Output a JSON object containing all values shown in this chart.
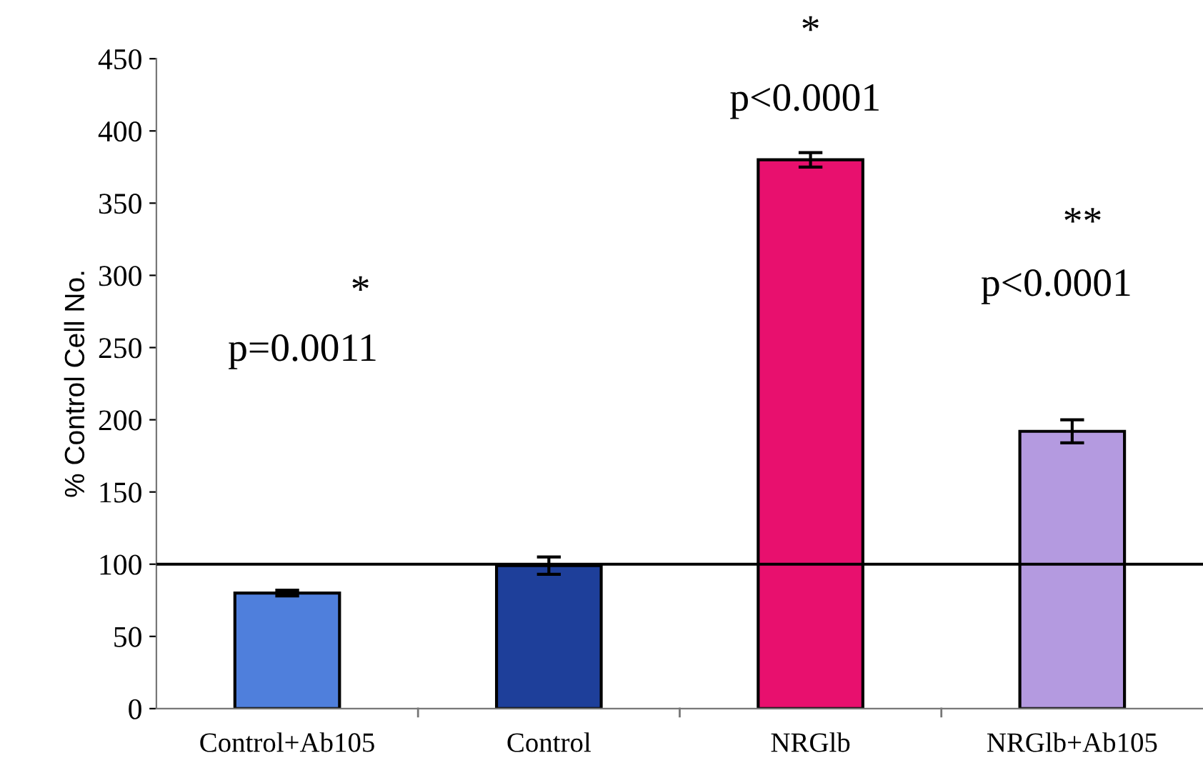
{
  "chart_data": {
    "type": "bar",
    "ylabel": "% Control Cell No.",
    "categories": [
      "Control+Ab105",
      "Control",
      "NRGlb",
      "NRGlb+Ab105"
    ],
    "values": [
      80,
      99,
      380,
      192
    ],
    "errors": [
      2,
      6,
      5,
      8
    ],
    "colors": [
      "#4f7fdc",
      "#1e3f9a",
      "#e8106e",
      "#b49ae0"
    ],
    "ylim": [
      0,
      450
    ],
    "yticks": [
      0,
      50,
      100,
      150,
      200,
      250,
      300,
      350,
      400,
      450
    ],
    "grid": false,
    "legend": false,
    "ref_lines": [
      {
        "axis": "y",
        "value": 100,
        "color": "#000000",
        "line_style": "solid"
      }
    ],
    "annotations": [
      "*",
      "p=0.0011",
      "*",
      "p<0.0001",
      "**",
      "p<0.0001"
    ]
  }
}
